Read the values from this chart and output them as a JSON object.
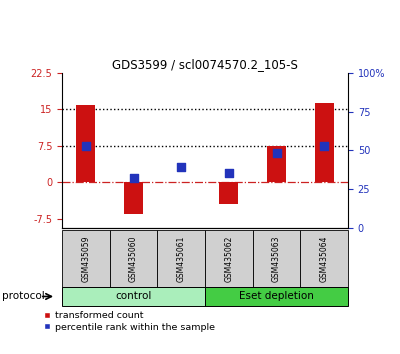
{
  "title": "GDS3599 / scl0074570.2_105-S",
  "samples": [
    "GSM435059",
    "GSM435060",
    "GSM435061",
    "GSM435062",
    "GSM435063",
    "GSM435064"
  ],
  "red_bars": [
    15.8,
    -6.5,
    0.1,
    -4.5,
    7.5,
    16.2
  ],
  "blue_dots_left": [
    7.5,
    0.9,
    3.2,
    1.8,
    6.0,
    7.5
  ],
  "ylim_left": [
    -9.5,
    22.5
  ],
  "yticks_left": [
    -7.5,
    0,
    7.5,
    15,
    22.5
  ],
  "ytick_labels_left": [
    "-7.5",
    "0",
    "7.5",
    "15",
    "22.5"
  ],
  "ylim_right": [
    0,
    100
  ],
  "yticks_right": [
    0,
    25,
    50,
    75,
    100
  ],
  "ytick_labels_right": [
    "0",
    "25",
    "50",
    "75",
    "100%"
  ],
  "hlines": [
    7.5,
    15.0
  ],
  "zero_line_color": "#cc2222",
  "bar_color": "#cc1111",
  "dot_color": "#2233bb",
  "bar_width": 0.4,
  "dot_size": 28,
  "groups": [
    {
      "label": "control",
      "indices": [
        0,
        1,
        2
      ],
      "color": "#aaeebb"
    },
    {
      "label": "Eset depletion",
      "indices": [
        3,
        4,
        5
      ],
      "color": "#44cc44"
    }
  ],
  "protocol_label": "protocol",
  "legend_red": "transformed count",
  "legend_blue": "percentile rank within the sample",
  "left_tick_color": "#cc2222",
  "right_tick_color": "#2233bb",
  "fig_bg": "#ffffff",
  "label_box_color": "#d0d0d0"
}
